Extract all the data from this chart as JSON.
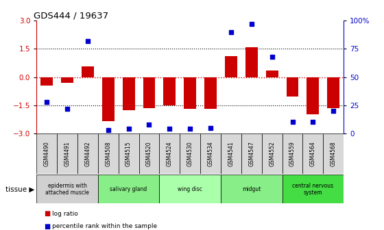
{
  "title": "GDS444 / 19637",
  "samples": [
    "GSM4490",
    "GSM4491",
    "GSM4492",
    "GSM4508",
    "GSM4515",
    "GSM4520",
    "GSM4524",
    "GSM4530",
    "GSM4534",
    "GSM4541",
    "GSM4547",
    "GSM4552",
    "GSM4559",
    "GSM4564",
    "GSM4568"
  ],
  "log_ratio": [
    -0.45,
    -0.3,
    0.55,
    -2.35,
    -1.75,
    -1.65,
    -1.5,
    -1.7,
    -1.7,
    1.1,
    1.6,
    0.35,
    -1.05,
    -2.0,
    -1.65
  ],
  "percentile": [
    28,
    22,
    82,
    3,
    4,
    8,
    4,
    4,
    5,
    90,
    97,
    68,
    10,
    10,
    20
  ],
  "ylim": [
    -3,
    3
  ],
  "yticks_left": [
    -3,
    -1.5,
    0,
    1.5,
    3
  ],
  "yticks_right": [
    0,
    25,
    50,
    75,
    100
  ],
  "bar_color": "#cc0000",
  "dot_color": "#0000cc",
  "tissue_groups": [
    {
      "label": "epidermis with\nattached muscle",
      "start": 0,
      "end": 3,
      "color": "#d0d0d0"
    },
    {
      "label": "salivary gland",
      "start": 3,
      "end": 6,
      "color": "#88ee88"
    },
    {
      "label": "wing disc",
      "start": 6,
      "end": 9,
      "color": "#aaffaa"
    },
    {
      "label": "midgut",
      "start": 9,
      "end": 12,
      "color": "#88ee88"
    },
    {
      "label": "central nervous\nsystem",
      "start": 12,
      "end": 15,
      "color": "#44dd44"
    }
  ]
}
